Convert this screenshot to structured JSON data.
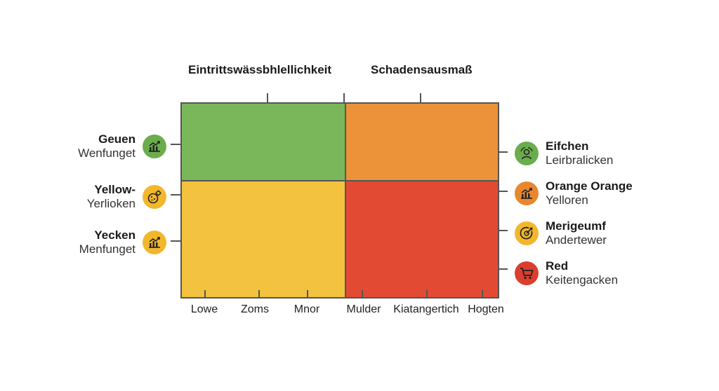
{
  "headers": {
    "left": "Eintrittswässbhlellichkeit",
    "right": "Schadensausmaß"
  },
  "matrix": {
    "cells": [
      {
        "name": "top-left",
        "color": "#7ab75a"
      },
      {
        "name": "top-right",
        "color": "#ec9238"
      },
      {
        "name": "bottom-left",
        "color": "#f3c33f"
      },
      {
        "name": "bottom-right",
        "color": "#e24a34"
      }
    ]
  },
  "x_axis_labels": [
    "Lowe",
    "Zoms",
    "Mnor",
    "Mulder",
    "Kiatangertich",
    "Hogten"
  ],
  "legend_left": [
    {
      "title": "Geuen",
      "subtitle": "Wenfunget",
      "color": "#6aad4c",
      "icon": "chart-up-icon"
    },
    {
      "title": "Yellow-",
      "subtitle": "Yerlioken",
      "color": "#f2b72c",
      "icon": "cookie-gear-icon"
    },
    {
      "title": "Yecken",
      "subtitle": "Menfunget",
      "color": "#f2b72c",
      "icon": "chart-up-icon"
    }
  ],
  "legend_right": [
    {
      "title": "Eifchen",
      "subtitle": "Leirbralicken",
      "color": "#6aad4c",
      "icon": "person-refresh-icon"
    },
    {
      "title": "Orange Orange",
      "subtitle": "Yelloren",
      "color": "#e8872e",
      "icon": "chart-up-icon"
    },
    {
      "title": "Merigeumf",
      "subtitle": "Andertewer",
      "color": "#f2b72c",
      "icon": "target-icon"
    },
    {
      "title": "Red",
      "subtitle": "Keitengacken",
      "color": "#dc3e2e",
      "icon": "cart-icon"
    }
  ]
}
